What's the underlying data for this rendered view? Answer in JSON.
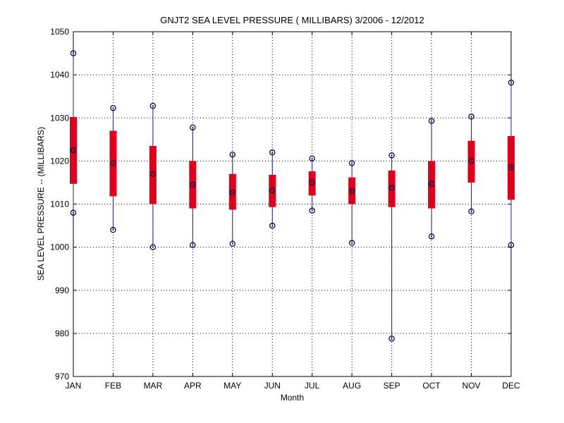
{
  "chart_data": {
    "type": "boxplot",
    "title": "GNJT2  SEA LEVEL PRESSURE ( MILLIBARS) 3/2006 - 12/2012",
    "xlabel": "Month",
    "ylabel": "SEA LEVEL PRESSURE -- (MILLIBARS)",
    "ylim": [
      970,
      1050
    ],
    "yticks": [
      970,
      980,
      990,
      1000,
      1010,
      1020,
      1030,
      1040,
      1050
    ],
    "grid": true,
    "categories": [
      "JAN",
      "FEB",
      "MAR",
      "APR",
      "MAY",
      "JUN",
      "JUL",
      "AUG",
      "SEP",
      "OCT",
      "NOV",
      "DEC"
    ],
    "series": [
      {
        "min": [
          1008,
          1004,
          1000,
          1000.5,
          1000.8,
          1005,
          1008.5,
          1001,
          978.8,
          1002.5,
          1008.3,
          1000.5
        ],
        "q1": [
          1014.7,
          1011.8,
          1010,
          1009,
          1008.7,
          1009.3,
          1012,
          1010,
          1009.3,
          1009,
          1015,
          1011
        ],
        "median": [
          1022.5,
          1019.5,
          1017,
          1014.5,
          1012.7,
          1013.2,
          1015,
          1013,
          1013.8,
          1014.7,
          1020,
          1018.5
        ],
        "q3": [
          1030.2,
          1027,
          1023.5,
          1020,
          1017,
          1016.8,
          1017.6,
          1016.2,
          1017.8,
          1020,
          1024.7,
          1025.8
        ],
        "max": [
          1045,
          1032.3,
          1032.8,
          1027.8,
          1021.5,
          1022,
          1020.6,
          1019.5,
          1021.3,
          1029.3,
          1030.3,
          1038.2
        ]
      }
    ],
    "colors": {
      "box": "#e0001b",
      "whisker": "#1f1f9f",
      "marker": "#0a0a40",
      "axis": "#000000"
    }
  }
}
